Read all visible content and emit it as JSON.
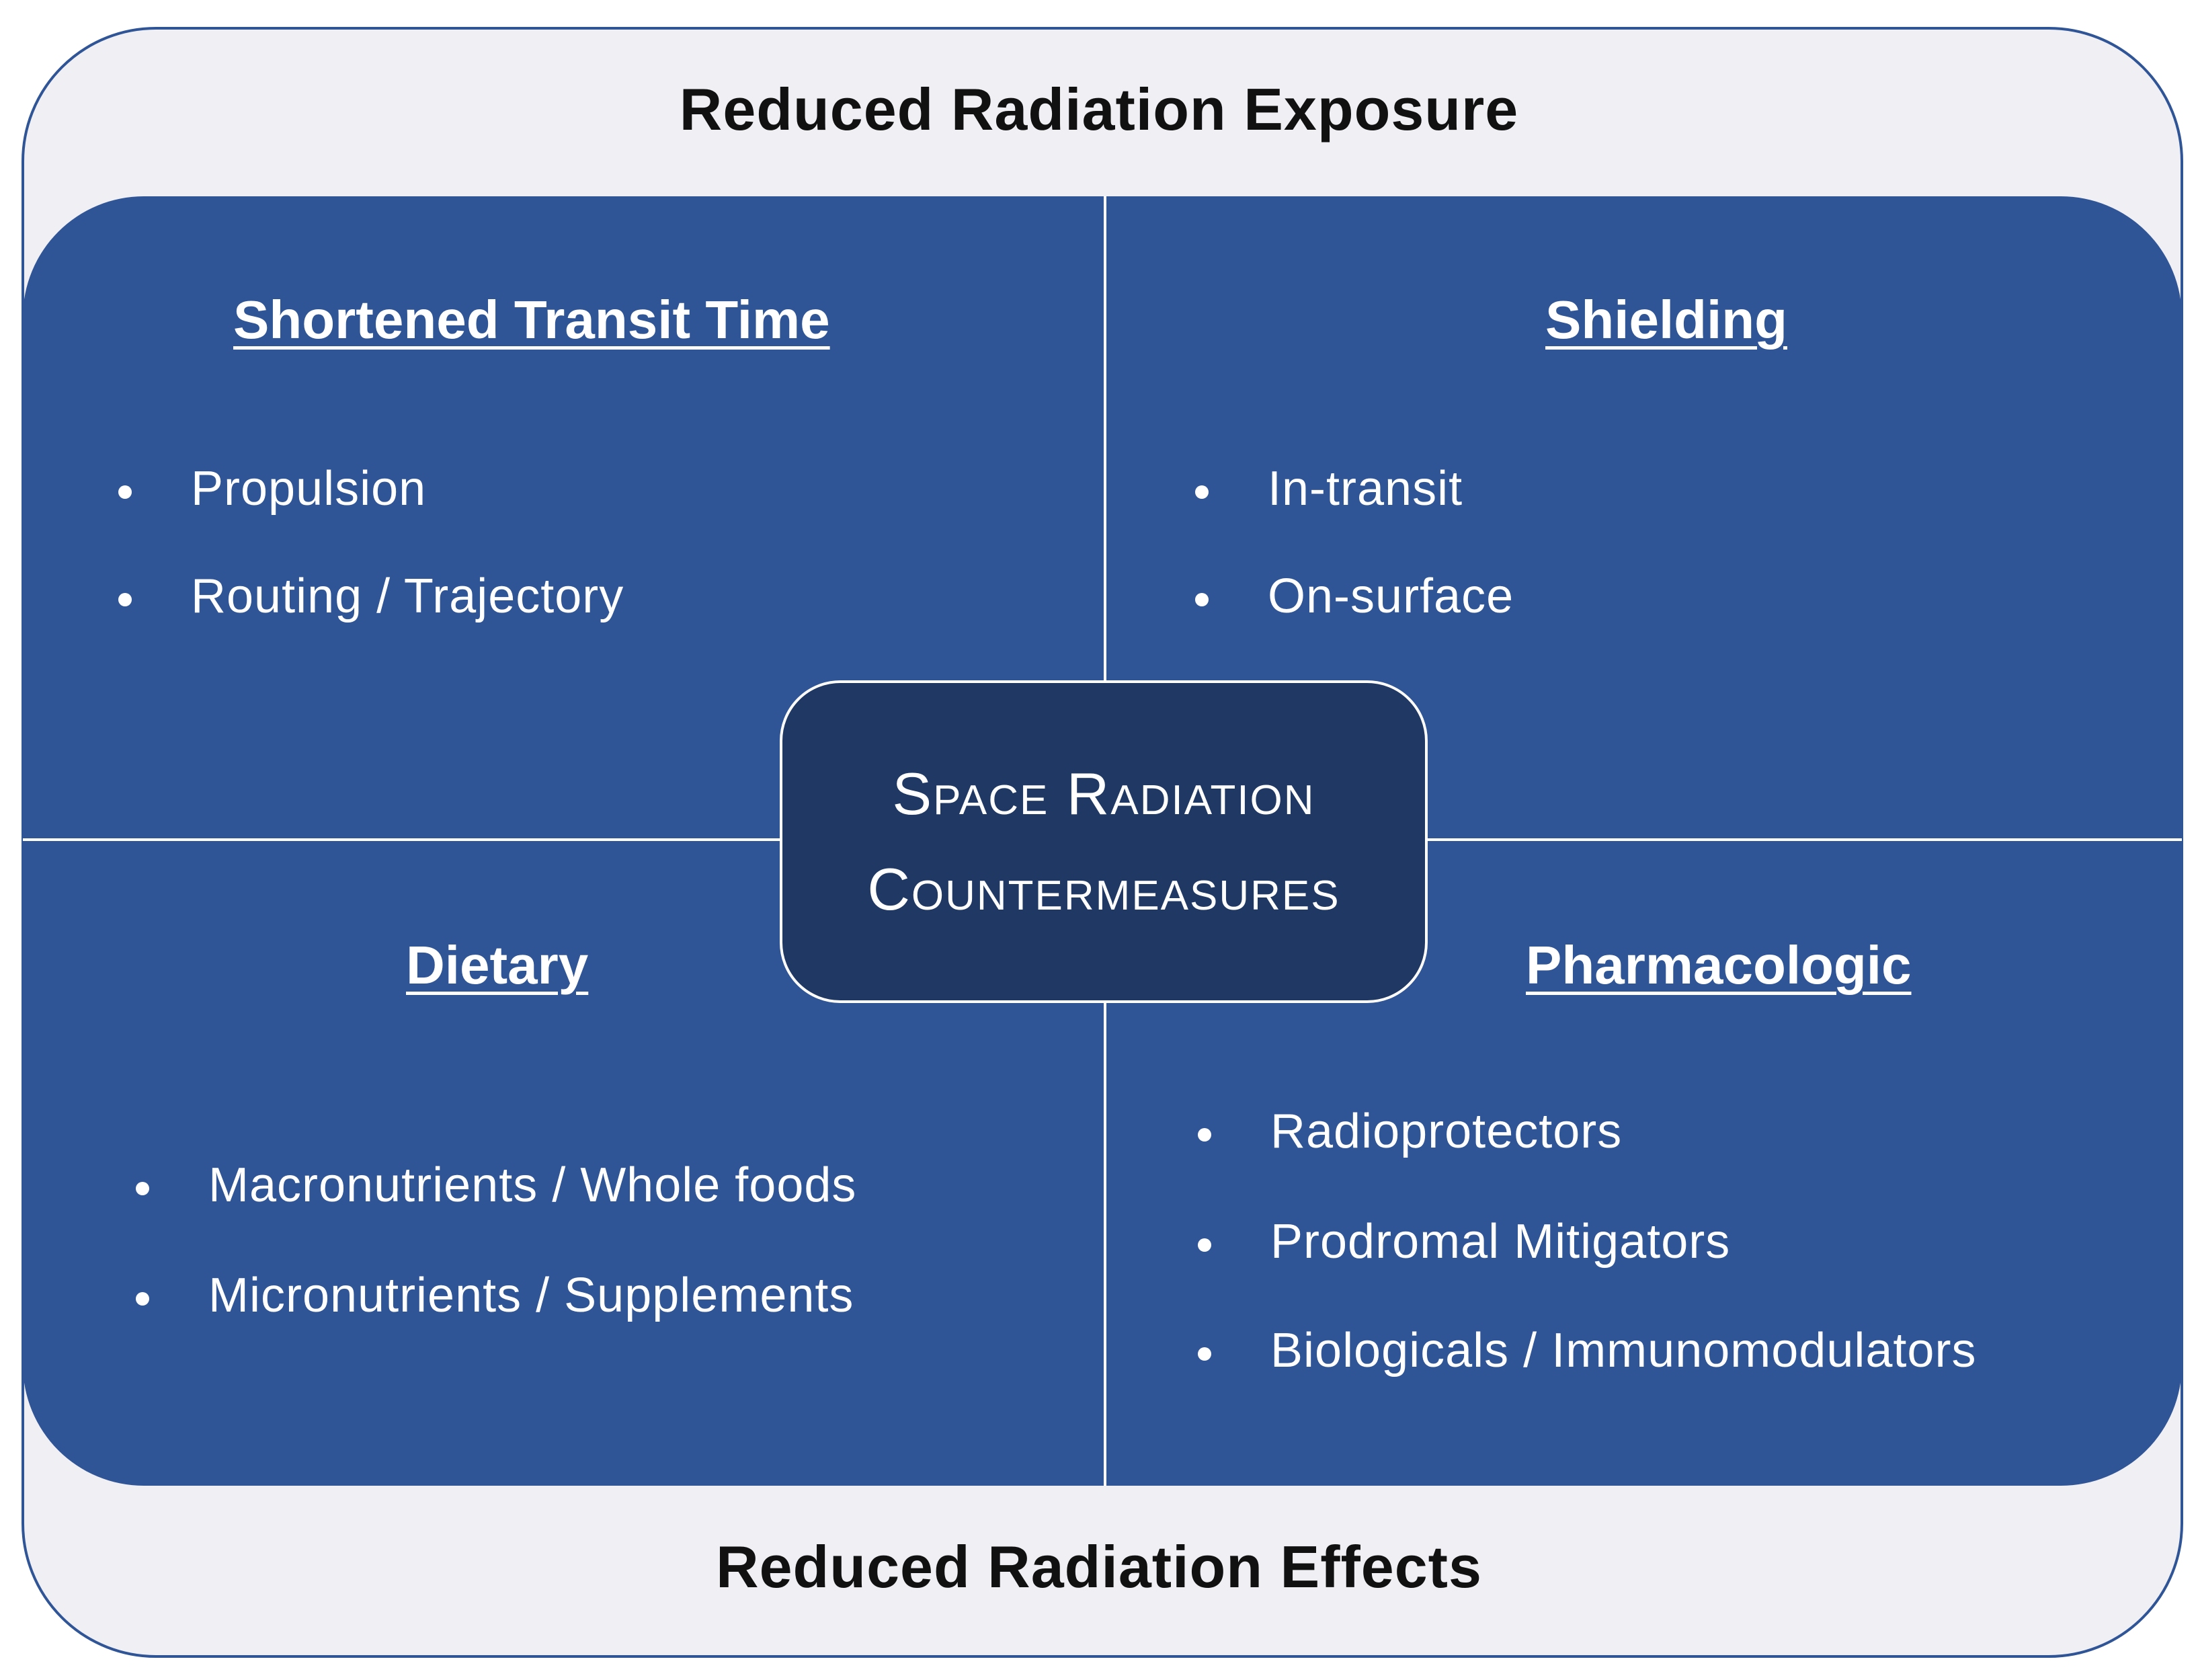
{
  "header": {
    "title": "Reduced Radiation Exposure"
  },
  "footer": {
    "title": "Reduced Radiation Effects"
  },
  "center": {
    "line1": "Space Radiation",
    "line2": "Countermeasures"
  },
  "quadrants": {
    "top_left": {
      "heading": "Shortened Transit Time",
      "items": [
        "Propulsion",
        "Routing / Trajectory"
      ]
    },
    "top_right": {
      "heading": "Shielding",
      "items": [
        "In-transit",
        "On-surface"
      ]
    },
    "bottom_left": {
      "heading": "Dietary",
      "items": [
        "Macronutrients / Whole foods",
        "Micronutrients / Supplements"
      ]
    },
    "bottom_right": {
      "heading": "Pharmacologic",
      "items": [
        "Radioprotectors",
        "Prodromal Mitigators",
        "Biologicals / Immunomodulators"
      ]
    }
  },
  "colors": {
    "panel_blue": "#2f5597",
    "center_navy": "#203864",
    "frame_background": "#efeff4"
  }
}
